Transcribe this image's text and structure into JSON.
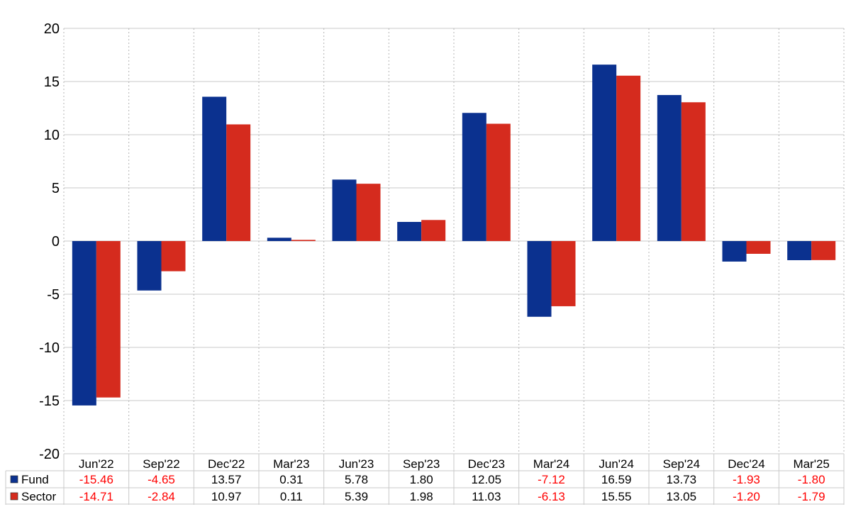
{
  "chart_data": {
    "type": "bar",
    "categories": [
      "Jun'22",
      "Sep'22",
      "Dec'22",
      "Mar'23",
      "Jun'23",
      "Sep'23",
      "Dec'23",
      "Mar'24",
      "Jun'24",
      "Sep'24",
      "Dec'24",
      "Mar'25"
    ],
    "series": [
      {
        "name": "Fund",
        "color": "#0b318f",
        "values": [
          -15.46,
          -4.65,
          13.57,
          0.31,
          5.78,
          1.8,
          12.05,
          -7.12,
          16.59,
          13.73,
          -1.93,
          -1.8
        ],
        "labels": [
          "-15.46",
          "-4.65",
          "13.57",
          "0.31",
          "5.78",
          "1.80",
          "12.05",
          "-7.12",
          "16.59",
          "13.73",
          "-1.93",
          "-1.80"
        ]
      },
      {
        "name": "Sector",
        "color": "#d52b1e",
        "values": [
          -14.71,
          -2.84,
          10.97,
          0.11,
          5.39,
          1.98,
          11.03,
          -6.13,
          15.55,
          13.05,
          -1.2,
          -1.79
        ],
        "labels": [
          "-14.71",
          "-2.84",
          "10.97",
          "0.11",
          "5.39",
          "1.98",
          "11.03",
          "-6.13",
          "15.55",
          "13.05",
          "-1.20",
          "-1.79"
        ]
      }
    ],
    "ylim": [
      -20,
      20
    ],
    "yticks": [
      "-20",
      "-15",
      "-10",
      "-5",
      "0",
      "5",
      "10",
      "15",
      "20"
    ],
    "grid": true,
    "legend": "data-table-left",
    "negative_value_color": "#ff0000",
    "positive_value_color": "#000000"
  }
}
